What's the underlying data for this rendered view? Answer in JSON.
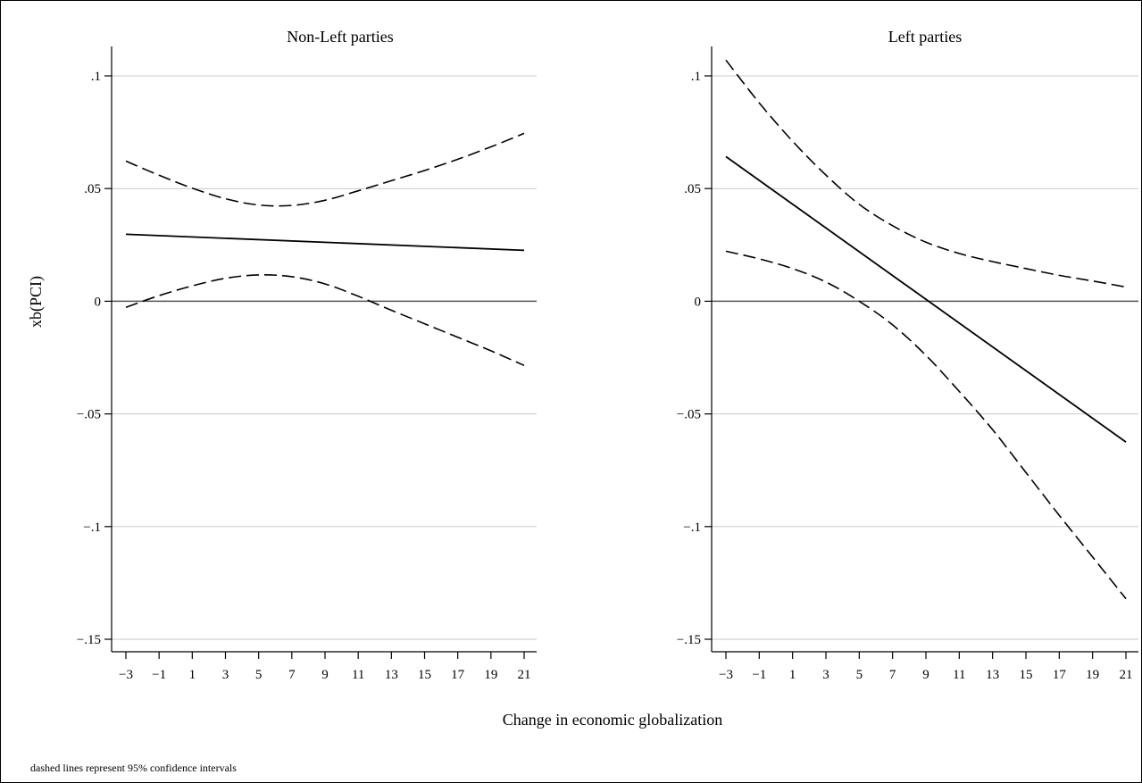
{
  "y_axis_title": "xb(PCI)",
  "x_axis_title": "Change in economic globalization",
  "note": "dashed lines represent 95% confidence intervals",
  "chart_data": [
    {
      "type": "line",
      "title": "Non-Left parties",
      "ylabel": "xb(PCI)",
      "xlabel": "Change in economic globalization",
      "xlim": [
        -3,
        21
      ],
      "ylim": [
        -0.15,
        0.1
      ],
      "x_ticks": [
        -3,
        -1,
        1,
        3,
        5,
        7,
        9,
        11,
        13,
        15,
        17,
        19,
        21
      ],
      "x_tick_labels": [
        "−3",
        "−1",
        "1",
        "3",
        "5",
        "7",
        "9",
        "11",
        "13",
        "15",
        "17",
        "19",
        "21"
      ],
      "y_ticks": [
        -0.15,
        -0.1,
        -0.05,
        0,
        0.05,
        0.1
      ],
      "y_tick_labels": [
        "−.15",
        "−.1",
        "−.05",
        "0",
        ".05",
        ".1"
      ],
      "grid": true,
      "reference_line_y": 0,
      "series": [
        {
          "style": "solid",
          "x": [
            -3,
            21
          ],
          "y": [
            0.0297,
            0.0226
          ]
        },
        {
          "style": "dashed",
          "x": [
            -3,
            -1,
            1,
            3,
            5,
            7,
            9,
            11,
            13,
            15,
            17,
            19,
            21
          ],
          "y": [
            0.0622,
            0.0559,
            0.0502,
            0.0455,
            0.0427,
            0.0425,
            0.0448,
            0.049,
            0.0535,
            0.058,
            0.063,
            0.0685,
            0.0745
          ]
        },
        {
          "style": "dashed",
          "x": [
            -3,
            -1,
            1,
            3,
            5,
            7,
            9,
            11,
            13,
            15,
            17,
            19,
            21
          ],
          "y": [
            -0.0027,
            0.0025,
            0.0068,
            0.0102,
            0.0117,
            0.0109,
            0.0077,
            0.0022,
            -0.004,
            -0.01,
            -0.016,
            -0.022,
            -0.0285
          ]
        }
      ]
    },
    {
      "type": "line",
      "title": "Left parties",
      "xlabel": "Change in economic globalization",
      "xlim": [
        -3,
        21
      ],
      "ylim": [
        -0.15,
        0.1
      ],
      "x_ticks": [
        -3,
        -1,
        1,
        3,
        5,
        7,
        9,
        11,
        13,
        15,
        17,
        19,
        21
      ],
      "x_tick_labels": [
        "−3",
        "−1",
        "1",
        "3",
        "5",
        "7",
        "9",
        "11",
        "13",
        "15",
        "17",
        "19",
        "21"
      ],
      "y_ticks": [
        -0.15,
        -0.1,
        -0.05,
        0,
        0.05,
        0.1
      ],
      "y_tick_labels": [
        "−.15",
        "−.1",
        "−.05",
        "0",
        ".05",
        ".1"
      ],
      "grid": true,
      "reference_line_y": 0,
      "series": [
        {
          "style": "solid",
          "x": [
            -3,
            21
          ],
          "y": [
            0.0642,
            -0.0625
          ]
        },
        {
          "style": "dashed",
          "x": [
            -3,
            -1,
            1,
            3,
            5,
            7,
            9,
            11,
            13,
            15,
            17,
            19,
            21
          ],
          "y": [
            0.107,
            0.088,
            0.071,
            0.056,
            0.043,
            0.0335,
            0.0262,
            0.0212,
            0.0176,
            0.0145,
            0.0115,
            0.009,
            0.0063
          ]
        },
        {
          "style": "dashed",
          "x": [
            -3,
            -1,
            1,
            3,
            5,
            7,
            9,
            11,
            13,
            15,
            17,
            19,
            21
          ],
          "y": [
            0.0222,
            0.0188,
            0.0145,
            0.0085,
            0.0,
            -0.0105,
            -0.024,
            -0.04,
            -0.057,
            -0.076,
            -0.095,
            -0.1135,
            -0.132
          ]
        }
      ]
    }
  ]
}
